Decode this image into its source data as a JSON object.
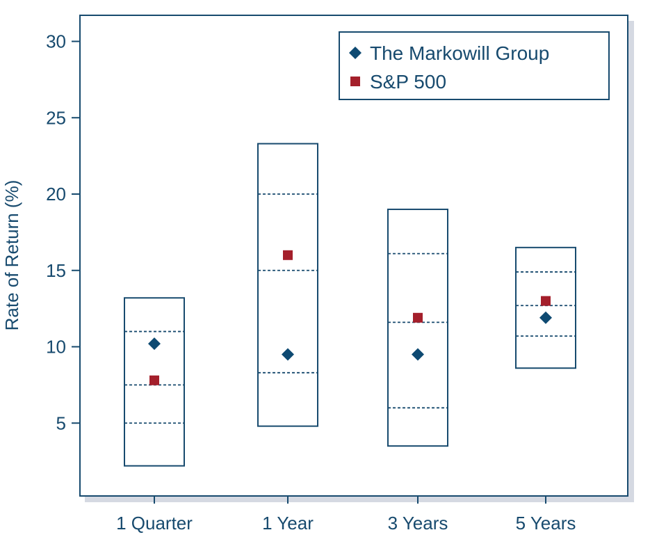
{
  "colors": {
    "axis": "#174a6e",
    "markowill": "#0e4a72",
    "sp500": "#a41f2b",
    "shadow": "#c3c9d6"
  },
  "chart_data": {
    "type": "scatter",
    "ylabel": "Rate of Return (%)",
    "xlabel": "",
    "ylim": [
      0,
      32
    ],
    "yticks": [
      5,
      10,
      15,
      20,
      25,
      30
    ],
    "grid": false,
    "legend_position": "top-right",
    "categories": [
      "1 Quarter",
      "1 Year",
      "3 Years",
      "5 Years"
    ],
    "boxes": [
      {
        "category": "1 Quarter",
        "low": 2.2,
        "high": 13.2,
        "p25": 5.0,
        "median": 7.5,
        "p75": 11.0
      },
      {
        "category": "1 Year",
        "low": 4.8,
        "high": 23.3,
        "p25": 8.3,
        "median": 15.0,
        "p75": 20.0
      },
      {
        "category": "3 Years",
        "low": 3.5,
        "high": 19.0,
        "p25": 6.0,
        "median": 11.6,
        "p75": 16.1
      },
      {
        "category": "5 Years",
        "low": 8.6,
        "high": 16.5,
        "p25": 10.7,
        "median": 12.7,
        "p75": 14.9
      }
    ],
    "series": [
      {
        "name": "The Markowill Group",
        "marker": "diamond",
        "values": [
          10.2,
          9.5,
          9.5,
          11.9
        ]
      },
      {
        "name": "S&P 500",
        "marker": "square",
        "values": [
          7.8,
          16.0,
          11.9,
          13.0
        ]
      }
    ]
  }
}
